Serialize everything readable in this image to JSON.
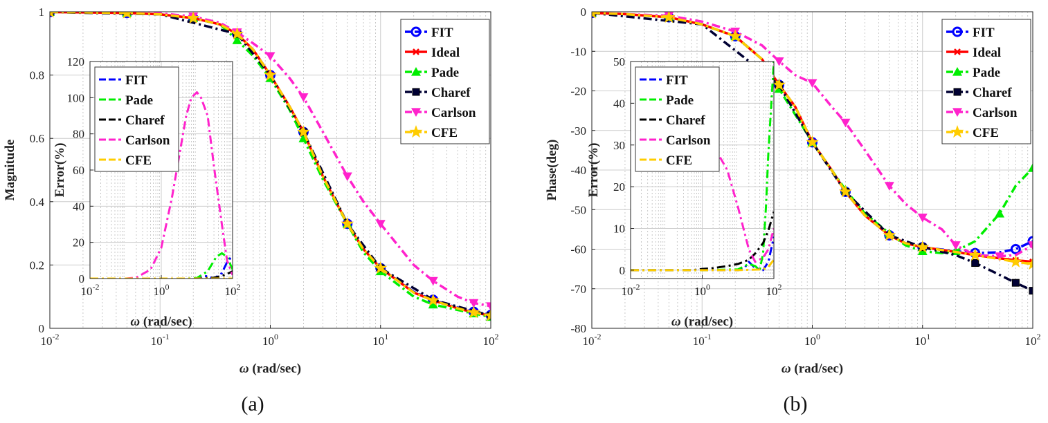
{
  "panels": [
    {
      "id": "a",
      "label": "(a)",
      "chart_data": {
        "type": "line",
        "xscale": "log",
        "xlim": [
          0.01,
          100
        ],
        "ylim": [
          0,
          1
        ],
        "xticks": [
          0.01,
          0.1,
          1,
          10,
          100
        ],
        "xticklabels": [
          "10^-2",
          "10^-1",
          "10^0",
          "10^1",
          "10^2"
        ],
        "yticks": [
          0,
          0.2,
          0.4,
          0.6,
          0.8,
          1
        ],
        "yticklabels": [
          "0",
          "0.2",
          "0.4",
          "0.6",
          "0.8",
          "1"
        ],
        "xlabel": "ω (rad/sec)",
        "ylabel": "Magnitude",
        "grid": true,
        "legend": "top-right",
        "series": [
          {
            "name": "FIT",
            "color": "#0000ff",
            "dash": "12 5 3 5",
            "marker": "circle",
            "x": [
              0.01,
              0.02,
              0.05,
              0.1,
              0.2,
              0.35,
              0.5,
              0.7,
              1,
              1.5,
              2,
              3,
              5,
              7,
              10,
              20,
              30,
              50,
              70,
              100
            ],
            "y": [
              0.999,
              0.998,
              0.996,
              0.992,
              0.98,
              0.96,
              0.93,
              0.88,
              0.8,
              0.7,
              0.62,
              0.48,
              0.33,
              0.25,
              0.19,
              0.115,
              0.09,
              0.065,
              0.052,
              0.042
            ]
          },
          {
            "name": "Ideal",
            "color": "#ff0000",
            "dash": "",
            "marker": "x",
            "x": [
              0.01,
              0.02,
              0.05,
              0.1,
              0.2,
              0.35,
              0.5,
              0.7,
              1,
              1.5,
              2,
              3,
              5,
              7,
              10,
              20,
              30,
              50,
              70,
              100
            ],
            "y": [
              0.999,
              0.998,
              0.996,
              0.992,
              0.98,
              0.96,
              0.93,
              0.88,
              0.8,
              0.7,
              0.62,
              0.48,
              0.33,
              0.25,
              0.19,
              0.113,
              0.088,
              0.063,
              0.05,
              0.04
            ]
          },
          {
            "name": "Pade",
            "color": "#00ee00",
            "dash": "12 5 3 5",
            "marker": "triangle",
            "x": [
              0.01,
              0.02,
              0.05,
              0.1,
              0.2,
              0.35,
              0.5,
              0.7,
              1,
              1.5,
              2,
              3,
              5,
              7,
              10,
              20,
              30,
              50,
              70,
              100
            ],
            "y": [
              0.999,
              0.998,
              0.996,
              0.992,
              0.98,
              0.96,
              0.91,
              0.86,
              0.79,
              0.69,
              0.6,
              0.47,
              0.33,
              0.24,
              0.18,
              0.1,
              0.075,
              0.058,
              0.047,
              0.036
            ]
          },
          {
            "name": "Charef",
            "color": "#000033",
            "dash": "12 5 3 5",
            "marker": "square",
            "x": [
              0.01,
              0.1,
              0.5,
              1,
              2,
              5,
              10,
              30,
              100
            ],
            "y": [
              0.999,
              0.992,
              0.93,
              0.8,
              0.62,
              0.33,
              0.19,
              0.09,
              0.04
            ]
          },
          {
            "name": "Carlson",
            "color": "#ff22cc",
            "dash": "12 5 3 5",
            "marker": "triangle-down",
            "x": [
              0.01,
              0.02,
              0.05,
              0.1,
              0.2,
              0.35,
              0.5,
              0.7,
              1,
              1.5,
              2,
              3,
              5,
              7,
              10,
              20,
              30,
              50,
              70,
              100
            ],
            "y": [
              0.999,
              0.999,
              0.998,
              0.995,
              0.985,
              0.965,
              0.935,
              0.9,
              0.86,
              0.79,
              0.73,
              0.62,
              0.48,
              0.4,
              0.33,
              0.2,
              0.15,
              0.1,
              0.08,
              0.07
            ]
          },
          {
            "name": "CFE",
            "color": "#ffcc00",
            "dash": "12 5 3 5",
            "marker": "star",
            "x": [
              0.01,
              0.02,
              0.05,
              0.1,
              0.2,
              0.35,
              0.5,
              0.7,
              1,
              1.5,
              2,
              3,
              5,
              7,
              10,
              20,
              30,
              50,
              70,
              100
            ],
            "y": [
              0.999,
              0.998,
              0.996,
              0.992,
              0.98,
              0.96,
              0.93,
              0.88,
              0.8,
              0.7,
              0.62,
              0.48,
              0.33,
              0.25,
              0.19,
              0.113,
              0.088,
              0.063,
              0.05,
              0.04
            ]
          }
        ]
      },
      "inset": {
        "type": "line",
        "xscale": "log",
        "xlim": [
          0.01,
          100
        ],
        "ylim": [
          0,
          120
        ],
        "xticks": [
          0.01,
          1,
          100
        ],
        "xticklabels": [
          "10^-2",
          "10^0",
          "10^2"
        ],
        "yticks": [
          0,
          20,
          40,
          60,
          80,
          100,
          120
        ],
        "yticklabels": [
          "0",
          "20",
          "40",
          "60",
          "80",
          "100",
          "120"
        ],
        "xlabel": "ω (rad/sec)",
        "ylabel": "Error(%)",
        "grid": true,
        "legend": "top-left",
        "series": [
          {
            "name": "FIT",
            "color": "#0000ff",
            "dash": "12 5 3 5",
            "x": [
              0.01,
              1,
              10,
              13,
              16,
              20,
              30,
              50,
              70,
              100
            ],
            "y": [
              0,
              0,
              0,
              0.5,
              1.5,
              1.2,
              0,
              3,
              9,
              13
            ]
          },
          {
            "name": "Pade",
            "color": "#00ee00",
            "dash": "12 5 3 5",
            "x": [
              0.01,
              1,
              5,
              10,
              20,
              35,
              50,
              70,
              100
            ],
            "y": [
              0,
              0,
              0,
              0.3,
              4,
              12,
              14,
              12,
              5
            ]
          },
          {
            "name": "Charef",
            "color": "#000000",
            "dash": "12 5 3 5",
            "x": [
              0.01,
              1,
              10,
              30,
              50,
              70,
              100
            ],
            "y": [
              0,
              0,
              0,
              0.5,
              1.5,
              2.5,
              4
            ]
          },
          {
            "name": "Carlson",
            "color": "#ff22cc",
            "dash": "12 5 3 5",
            "x": [
              0.01,
              0.1,
              0.2,
              0.5,
              1,
              2,
              3,
              5,
              7,
              10,
              13,
              20,
              30,
              50,
              70,
              100
            ],
            "y": [
              0,
              0,
              0.5,
              5,
              17,
              45,
              65,
              90,
              100,
              103,
              100,
              90,
              62,
              30,
              10,
              2
            ]
          },
          {
            "name": "CFE",
            "color": "#ffcc00",
            "dash": "12 5 3 5",
            "x": [
              0.01,
              100
            ],
            "y": [
              0,
              0
            ]
          }
        ]
      }
    },
    {
      "id": "b",
      "label": "(b)",
      "chart_data": {
        "type": "line",
        "xscale": "log",
        "xlim": [
          0.01,
          100
        ],
        "ylim": [
          -80,
          0
        ],
        "xticks": [
          0.01,
          0.1,
          1,
          10,
          100
        ],
        "xticklabels": [
          "10^-2",
          "10^-1",
          "10^0",
          "10^1",
          "10^2"
        ],
        "yticks": [
          -80,
          -70,
          -60,
          -50,
          -40,
          -30,
          -20,
          -10,
          0
        ],
        "yticklabels": [
          "-80",
          "-70",
          "-60",
          "-50",
          "-40",
          "-30",
          "-20",
          "-10",
          "0"
        ],
        "xlabel": "ω (rad/sec)",
        "ylabel": "Phase(deg)",
        "grid": true,
        "legend": "top-right",
        "series": [
          {
            "name": "FIT",
            "color": "#0000ff",
            "dash": "12 5 3 5",
            "marker": "circle",
            "x": [
              0.01,
              0.02,
              0.05,
              0.1,
              0.2,
              0.35,
              0.5,
              0.7,
              1,
              1.5,
              2,
              3,
              5,
              7,
              10,
              20,
              30,
              50,
              70,
              100
            ],
            "y": [
              -0.3,
              -0.6,
              -1.4,
              -3.2,
              -6.2,
              -12,
              -18.5,
              -24,
              -33,
              -40,
              -45.5,
              -51.5,
              -56.5,
              -58.5,
              -59.5,
              -60.5,
              -61,
              -60.8,
              -60,
              -58
            ]
          },
          {
            "name": "Ideal",
            "color": "#ff0000",
            "dash": "",
            "marker": "x",
            "x": [
              0.01,
              0.02,
              0.05,
              0.1,
              0.2,
              0.35,
              0.5,
              0.7,
              1,
              1.5,
              2,
              3,
              5,
              7,
              10,
              20,
              30,
              50,
              70,
              100
            ],
            "y": [
              -0.3,
              -0.6,
              -1.4,
              -3.2,
              -6.2,
              -12,
              -18.5,
              -24,
              -33,
              -40,
              -45.5,
              -51.5,
              -56.5,
              -58.5,
              -59.5,
              -60.7,
              -61.5,
              -62.3,
              -62.8,
              -63.2
            ]
          },
          {
            "name": "Pade",
            "color": "#00ee00",
            "dash": "12 5 3 5",
            "marker": "triangle",
            "x": [
              0.01,
              0.02,
              0.05,
              0.1,
              0.2,
              0.35,
              0.5,
              0.7,
              1,
              1.5,
              2,
              3,
              5,
              7,
              10,
              15,
              20,
              30,
              50,
              70,
              100
            ],
            "y": [
              -0.3,
              -0.6,
              -1.4,
              -3.2,
              -6.2,
              -12,
              -19.5,
              -26,
              -33,
              -40,
              -45,
              -51,
              -56,
              -59,
              -60.5,
              -61,
              -60.5,
              -58,
              -51,
              -44,
              -39.5
            ]
          },
          {
            "name": "Charef",
            "color": "#000033",
            "dash": "12 5 3 5",
            "marker": "square",
            "x": [
              0.01,
              0.1,
              0.5,
              1,
              2,
              5,
              10,
              20,
              30,
              50,
              70,
              100
            ],
            "y": [
              -0.3,
              -3.2,
              -18.5,
              -33,
              -45.5,
              -56.5,
              -59.5,
              -61.5,
              -63.5,
              -66.5,
              -68.5,
              -70.5
            ]
          },
          {
            "name": "Carlson",
            "color": "#ff22cc",
            "dash": "12 5 3 5",
            "marker": "triangle-down",
            "x": [
              0.01,
              0.02,
              0.05,
              0.1,
              0.2,
              0.35,
              0.5,
              0.7,
              1,
              1.5,
              2,
              3,
              5,
              7,
              10,
              15,
              20,
              30,
              50,
              70,
              100
            ],
            "y": [
              -0.2,
              -0.6,
              -1,
              -2.5,
              -5,
              -8.5,
              -12.5,
              -16,
              -18,
              -24,
              -28,
              -35,
              -44,
              -48.5,
              -52,
              -55,
              -59,
              -61.5,
              -61.8,
              -61.5,
              -59
            ]
          },
          {
            "name": "CFE",
            "color": "#ffcc00",
            "dash": "12 5 3 5",
            "marker": "star",
            "x": [
              0.01,
              0.02,
              0.05,
              0.1,
              0.2,
              0.35,
              0.5,
              0.7,
              1,
              1.5,
              2,
              3,
              5,
              7,
              10,
              20,
              30,
              50,
              70,
              100
            ],
            "y": [
              -0.3,
              -0.6,
              -1.4,
              -3.2,
              -6.2,
              -12,
              -18.5,
              -24,
              -33,
              -40,
              -45.5,
              -51.5,
              -56.5,
              -58.5,
              -59.5,
              -60.7,
              -61.5,
              -62.5,
              -63.2,
              -63.8
            ]
          }
        ]
      },
      "inset": {
        "type": "line",
        "xscale": "log",
        "xlim": [
          0.01,
          100
        ],
        "ylim": [
          -2,
          50
        ],
        "xticks": [
          0.01,
          1,
          100
        ],
        "xticklabels": [
          "10^-2",
          "10^0",
          "10^2"
        ],
        "yticks": [
          0,
          10,
          20,
          30,
          40,
          50
        ],
        "yticklabels": [
          "0",
          "10",
          "20",
          "30",
          "40",
          "50"
        ],
        "xlabel": "ω (rad/sec)",
        "ylabel": "Error(%)",
        "grid": true,
        "legend": "top-left",
        "series": [
          {
            "name": "FIT",
            "color": "#0000ff",
            "dash": "12 5 3 5",
            "x": [
              0.01,
              1,
              10,
              15,
              20,
              30,
              50,
              70,
              100
            ],
            "y": [
              0,
              0,
              0,
              0.5,
              2,
              0.5,
              0,
              2,
              8
            ]
          },
          {
            "name": "Pade",
            "color": "#00ee00",
            "dash": "12 5 3 5",
            "x": [
              0.01,
              1,
              10,
              20,
              30,
              40,
              50,
              60,
              70,
              85,
              100
            ],
            "y": [
              0,
              0,
              0.2,
              1.5,
              1,
              0,
              4,
              15,
              28,
              40,
              50
            ]
          },
          {
            "name": "Charef",
            "color": "#000000",
            "dash": "12 5 3 5",
            "x": [
              0.01,
              0.5,
              1,
              2,
              5,
              10,
              20,
              30,
              50,
              70,
              100
            ],
            "y": [
              0,
              0,
              0.3,
              0.5,
              1,
              1.5,
              2.5,
              4,
              6.5,
              9.5,
              14
            ]
          },
          {
            "name": "Carlson",
            "color": "#ff22cc",
            "dash": "12 5 3 5",
            "x": [
              0.2,
              0.5,
              1,
              2,
              5,
              10,
              20,
              30,
              50,
              70,
              100
            ],
            "y": [
              45,
              40,
              35,
              30,
              24,
              15,
              5,
              2,
              3,
              5,
              10
            ]
          },
          {
            "name": "CFE",
            "color": "#ffcc00",
            "dash": "12 5 3 5",
            "x": [
              0.01,
              10,
              50,
              70,
              100
            ],
            "y": [
              0,
              0,
              0.2,
              0.8,
              2.5
            ]
          }
        ]
      }
    }
  ]
}
